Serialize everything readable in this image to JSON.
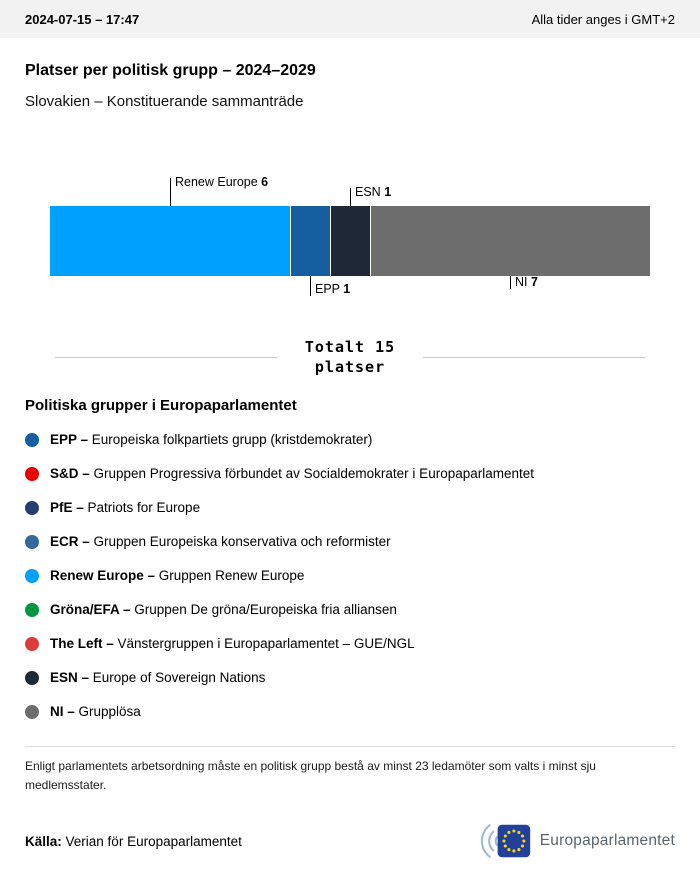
{
  "header": {
    "datetime": "2024-07-15 – 17:47",
    "timezone_note": "Alla tider anges i GMT+2"
  },
  "title": "Platser per politisk grupp – 2024–2029",
  "subtitle": "Slovakien – Konstituerande sammanträde",
  "chart_data": {
    "type": "bar",
    "title": "Platser per politisk grupp – 2024–2029",
    "subtitle": "Slovakien – Konstituerande sammanträde",
    "total": 15,
    "total_label_line1": "Totalt 15",
    "total_label_line2": "platser",
    "segments": [
      {
        "name": "Renew Europe",
        "value": 6,
        "color": "#00a0ff",
        "label_position": "above"
      },
      {
        "name": "EPP",
        "value": 1,
        "color": "#155fa0",
        "label_position": "below"
      },
      {
        "name": "ESN",
        "value": 1,
        "color": "#1e2836",
        "label_position": "above"
      },
      {
        "name": "NI",
        "value": 7,
        "color": "#6d6d6d",
        "label_position": "below"
      }
    ]
  },
  "legend": {
    "heading": "Politiska grupper i Europaparlamentet",
    "items": [
      {
        "abbr": "EPP –",
        "desc": "Europeiska folkpartiets grupp (kristdemokrater)",
        "color": "#155fa0"
      },
      {
        "abbr": "S&D –",
        "desc": "Gruppen Progressiva förbundet av Socialdemokrater i Europaparlamentet",
        "color": "#e60000"
      },
      {
        "abbr": "PfE –",
        "desc": "Patriots for Europe",
        "color": "#243e70"
      },
      {
        "abbr": "ECR –",
        "desc": "Gruppen Europeiska konservativa och reformister",
        "color": "#33699f"
      },
      {
        "abbr": "Renew Europe –",
        "desc": "Gruppen Renew Europe",
        "color": "#00a0ff"
      },
      {
        "abbr": "Gröna/EFA –",
        "desc": "Gruppen De gröna/Europeiska fria alliansen",
        "color": "#009642"
      },
      {
        "abbr": "The Left –",
        "desc": "Vänstergruppen i Europaparlamentet – GUE/NGL",
        "color": "#db3c3c"
      },
      {
        "abbr": "ESN –",
        "desc": "Europe of Sovereign Nations",
        "color": "#1e2836"
      },
      {
        "abbr": "NI –",
        "desc": "Grupplösa",
        "color": "#6d6d6d"
      }
    ]
  },
  "footnote": "Enligt parlamentets arbetsordning måste en politisk grupp bestå av minst 23 ledamöter som valts i minst sju medlemsstater.",
  "footer": {
    "source_label": "Källa:",
    "source_text": "Verian för Europaparlamentet",
    "logo_text": "Europaparlamentet"
  }
}
